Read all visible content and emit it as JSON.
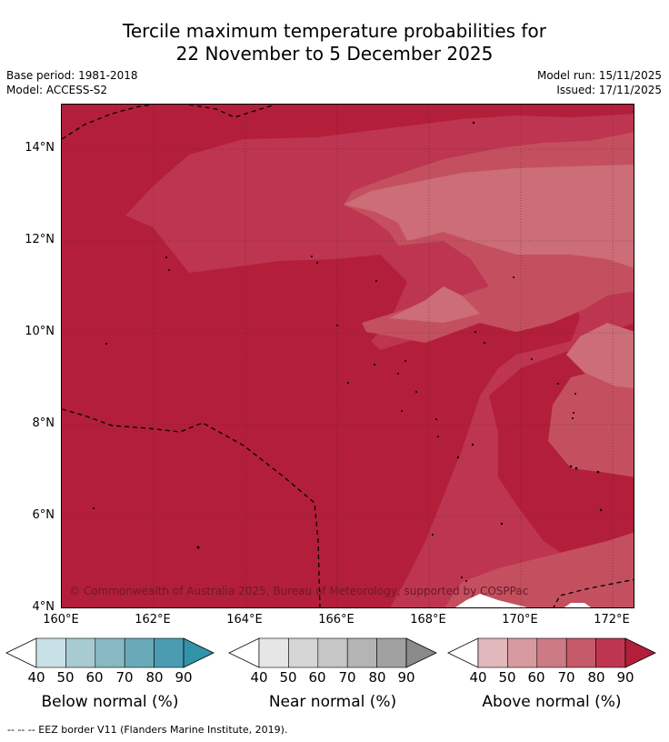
{
  "title": {
    "line1": "Tercile maximum temperature probabilities for",
    "line2": "22 November to 5 December 2025"
  },
  "meta": {
    "base_period": "Base period: 1981-2018",
    "model": "Model: ACCESS-S2",
    "model_run": "Model run: 15/11/2025",
    "issued": "Issued: 17/11/2025"
  },
  "map": {
    "lat_labels": [
      "14°N",
      "12°N",
      "10°N",
      "8°N",
      "6°N",
      "4°N"
    ],
    "lon_labels": [
      "160°E",
      "162°E",
      "164°E",
      "166°E",
      "168°E",
      "170°E",
      "172°E"
    ],
    "copyright": "© Commonwealth of Australia 2025, Bureau of Meteorology, supported by COSPPac",
    "colors": {
      "above_90": "#b31e3b",
      "above_80": "#bd3550",
      "above_70": "#c4505f",
      "above_60": "#cc6d78",
      "normal_white": "#ffffff"
    }
  },
  "colorbars": {
    "ticks": [
      "40",
      "50",
      "60",
      "70",
      "80",
      "90"
    ],
    "below": {
      "label": "Below normal (%)",
      "colors": [
        "#ffffff",
        "#c9e1e6",
        "#a8cbd1",
        "#88b8c2",
        "#6aa9b8",
        "#4b9cb0",
        "#3193a8"
      ]
    },
    "near": {
      "label": "Near normal (%)",
      "colors": [
        "#ffffff",
        "#e6e6e6",
        "#d6d6d6",
        "#c6c6c6",
        "#b4b4b4",
        "#a1a1a1",
        "#8a8a8a"
      ]
    },
    "above": {
      "label": "Above normal (%)",
      "colors": [
        "#ffffff",
        "#e1b8bc",
        "#d69aa0",
        "#cc7a84",
        "#c45a68",
        "#bd3550",
        "#b31e3b"
      ]
    }
  },
  "legend_note": "--  --  -- EEZ border V11 (Flanders Marine Institute, 2019)."
}
